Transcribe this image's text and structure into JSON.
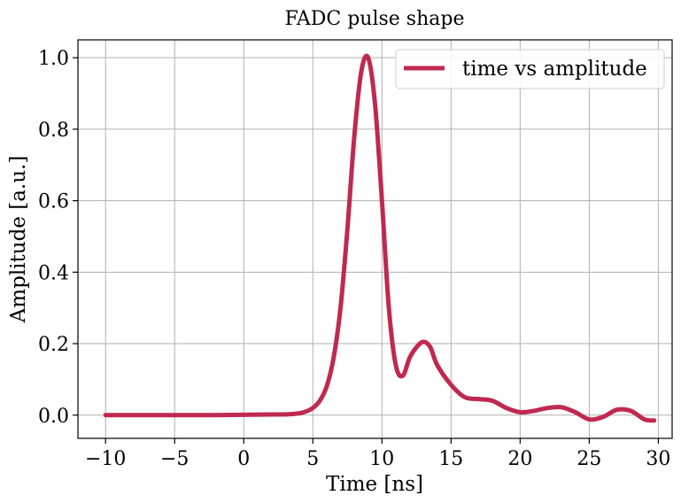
{
  "chart_data": {
    "type": "line",
    "title": "FADC pulse shape",
    "xlabel": "Time [ns]",
    "ylabel": "Amplitude [a.u.]",
    "xlim": [
      -12,
      31
    ],
    "ylim": [
      -0.065,
      1.05
    ],
    "x_ticks": [
      -10,
      -5,
      0,
      5,
      10,
      15,
      20,
      25,
      30
    ],
    "x_tick_labels": [
      "−10",
      "−5",
      "0",
      "5",
      "10",
      "15",
      "20",
      "25",
      "30"
    ],
    "y_ticks": [
      0.0,
      0.2,
      0.4,
      0.6,
      0.8,
      1.0
    ],
    "y_tick_labels": [
      "0.0",
      "0.2",
      "0.4",
      "0.6",
      "0.8",
      "1.0"
    ],
    "grid": true,
    "legend_position": "top-right",
    "series": [
      {
        "name": "time vs amplitude",
        "color": "#c0294f",
        "x": [
          -10,
          -8,
          -6,
          -4,
          -2,
          0,
          2,
          3,
          4,
          4.5,
          5,
          5.5,
          6,
          6.5,
          7,
          7.5,
          8,
          8.5,
          9,
          9.5,
          10,
          10.5,
          11,
          11.5,
          12,
          12.5,
          13,
          13.5,
          14,
          15,
          16,
          17,
          18,
          19,
          20,
          21,
          22,
          23,
          24,
          25,
          26,
          27,
          28,
          29,
          29.7
        ],
        "y": [
          0.0,
          0.0,
          0.0,
          0.0,
          0.0,
          0.001,
          0.002,
          0.002,
          0.005,
          0.01,
          0.02,
          0.04,
          0.08,
          0.16,
          0.3,
          0.52,
          0.78,
          0.96,
          1.0,
          0.87,
          0.6,
          0.3,
          0.14,
          0.11,
          0.16,
          0.19,
          0.205,
          0.19,
          0.14,
          0.085,
          0.05,
          0.045,
          0.04,
          0.02,
          0.008,
          0.012,
          0.02,
          0.022,
          0.008,
          -0.012,
          -0.005,
          0.015,
          0.012,
          -0.012,
          -0.015
        ]
      }
    ]
  }
}
